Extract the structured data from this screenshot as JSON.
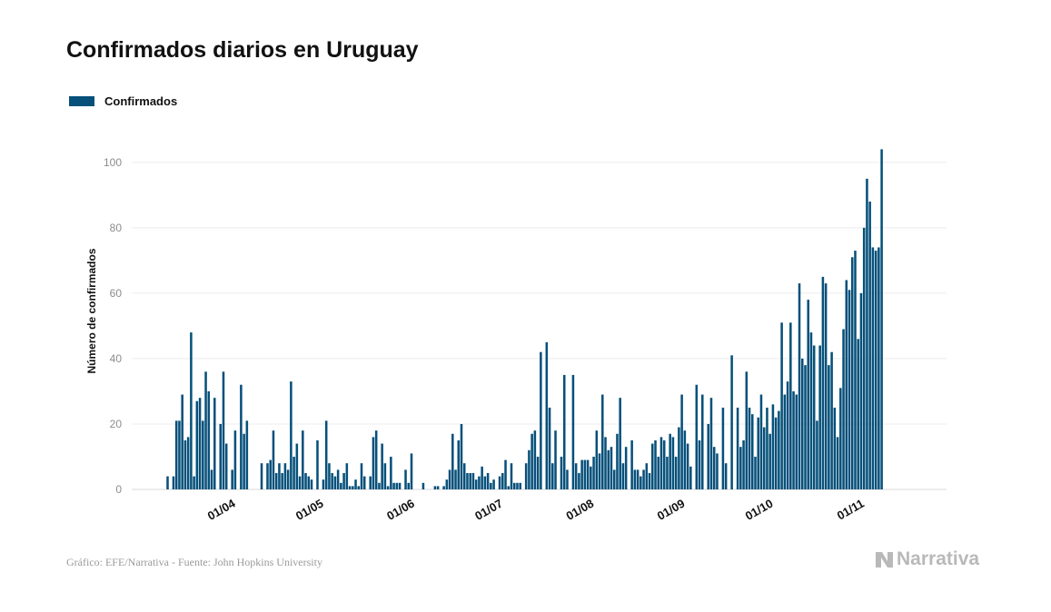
{
  "title": "Confirmados diarios en Uruguay",
  "legend": {
    "label": "Confirmados",
    "color": "#06507a"
  },
  "footer": {
    "source": "Gráfico: EFE/Narrativa - Fuente: John Hopkins University"
  },
  "brand": {
    "name": "Narrativa",
    "icon": "narrativa-logo-icon"
  },
  "chart_data": {
    "type": "bar",
    "title": "Confirmados diarios en Uruguay",
    "xlabel": "",
    "ylabel": "Número de confirmados",
    "ylim": [
      0,
      108
    ],
    "yticks": [
      0,
      20,
      40,
      60,
      80,
      100
    ],
    "grid": true,
    "legend_position": "top-left",
    "start_date": "2020-03-13",
    "xticks": [
      {
        "label": "01/04",
        "index": 19
      },
      {
        "label": "01/05",
        "index": 49
      },
      {
        "label": "01/06",
        "index": 80
      },
      {
        "label": "01/07",
        "index": 110
      },
      {
        "label": "01/08",
        "index": 141
      },
      {
        "label": "01/09",
        "index": 172
      },
      {
        "label": "01/10",
        "index": 202
      },
      {
        "label": "01/11",
        "index": 233
      }
    ],
    "series": [
      {
        "name": "Confirmados",
        "color": "#06507a",
        "values": [
          4,
          0,
          4,
          21,
          21,
          29,
          15,
          16,
          48,
          4,
          27,
          28,
          21,
          36,
          30,
          6,
          28,
          0,
          20,
          36,
          14,
          0,
          6,
          18,
          0,
          32,
          17,
          21,
          0,
          0,
          0,
          0,
          8,
          0,
          8,
          9,
          18,
          5,
          8,
          5,
          8,
          6,
          33,
          10,
          14,
          4,
          18,
          5,
          4,
          3,
          0,
          15,
          0,
          3,
          21,
          8,
          5,
          4,
          6,
          2,
          5,
          8,
          1,
          1,
          3,
          1,
          8,
          4,
          0,
          4,
          16,
          18,
          2,
          14,
          8,
          1,
          10,
          2,
          2,
          2,
          0,
          6,
          2,
          11,
          0,
          0,
          0,
          2,
          0,
          0,
          0,
          1,
          1,
          0,
          1,
          3,
          6,
          17,
          6,
          15,
          20,
          8,
          5,
          5,
          5,
          3,
          4,
          7,
          4,
          5,
          2,
          3,
          0,
          4,
          5,
          9,
          1,
          8,
          2,
          2,
          2,
          0,
          8,
          12,
          17,
          18,
          10,
          42,
          0,
          45,
          25,
          8,
          18,
          0,
          10,
          35,
          6,
          0,
          35,
          8,
          5,
          9,
          9,
          9,
          7,
          10,
          18,
          11,
          29,
          16,
          12,
          13,
          6,
          17,
          28,
          8,
          13,
          0,
          15,
          6,
          6,
          4,
          6,
          8,
          5,
          14,
          15,
          10,
          16,
          15,
          10,
          17,
          16,
          10,
          19,
          29,
          18,
          14,
          7,
          0,
          32,
          15,
          29,
          0,
          20,
          28,
          13,
          11,
          0,
          25,
          8,
          0,
          41,
          0,
          25,
          13,
          15,
          36,
          25,
          23,
          10,
          22,
          29,
          19,
          25,
          17,
          26,
          22,
          24,
          51,
          29,
          33,
          51,
          30,
          29,
          63,
          40,
          38,
          58,
          48,
          44,
          21,
          44,
          65,
          63,
          38,
          42,
          25,
          16,
          31,
          49,
          64,
          61,
          71,
          73,
          46,
          60,
          80,
          95,
          88,
          74,
          73,
          74,
          104
        ]
      }
    ]
  }
}
